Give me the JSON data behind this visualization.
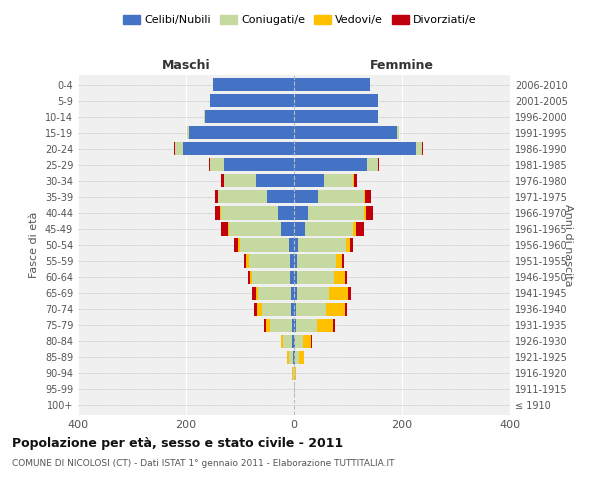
{
  "age_groups": [
    "100+",
    "95-99",
    "90-94",
    "85-89",
    "80-84",
    "75-79",
    "70-74",
    "65-69",
    "60-64",
    "55-59",
    "50-54",
    "45-49",
    "40-44",
    "35-39",
    "30-34",
    "25-29",
    "20-24",
    "15-19",
    "10-14",
    "5-9",
    "0-4"
  ],
  "birth_years": [
    "≤ 1910",
    "1911-1915",
    "1916-1920",
    "1921-1925",
    "1926-1930",
    "1931-1935",
    "1936-1940",
    "1941-1945",
    "1946-1950",
    "1951-1955",
    "1956-1960",
    "1961-1965",
    "1966-1970",
    "1971-1975",
    "1976-1980",
    "1981-1985",
    "1986-1990",
    "1991-1995",
    "1996-2000",
    "2001-2005",
    "2006-2010"
  ],
  "maschi": {
    "celibi": [
      0,
      0,
      0,
      2,
      3,
      4,
      5,
      6,
      7,
      8,
      10,
      25,
      30,
      50,
      70,
      130,
      205,
      195,
      165,
      155,
      150
    ],
    "coniugati": [
      0,
      0,
      2,
      8,
      18,
      40,
      55,
      60,
      70,
      75,
      90,
      95,
      105,
      90,
      60,
      25,
      15,
      4,
      2,
      1,
      0
    ],
    "vedovi": [
      0,
      0,
      1,
      3,
      4,
      8,
      8,
      5,
      5,
      5,
      3,
      2,
      2,
      1,
      0,
      1,
      1,
      0,
      0,
      0,
      0
    ],
    "divorziati": [
      0,
      0,
      0,
      0,
      0,
      3,
      6,
      6,
      4,
      4,
      8,
      14,
      10,
      6,
      5,
      2,
      1,
      0,
      0,
      0,
      0
    ]
  },
  "femmine": {
    "nubili": [
      0,
      0,
      0,
      2,
      2,
      3,
      4,
      5,
      6,
      6,
      8,
      20,
      25,
      45,
      55,
      135,
      225,
      190,
      155,
      155,
      140
    ],
    "coniugate": [
      0,
      1,
      2,
      8,
      15,
      40,
      55,
      60,
      68,
      72,
      88,
      90,
      105,
      85,
      55,
      20,
      12,
      4,
      1,
      0,
      0
    ],
    "vedove": [
      0,
      0,
      2,
      8,
      15,
      30,
      35,
      35,
      20,
      10,
      8,
      5,
      3,
      2,
      1,
      0,
      0,
      0,
      0,
      0,
      0
    ],
    "divorziate": [
      0,
      0,
      0,
      0,
      1,
      2,
      5,
      5,
      5,
      4,
      6,
      14,
      14,
      10,
      6,
      2,
      1,
      0,
      0,
      0,
      0
    ]
  },
  "colors": {
    "celibi": "#4472c4",
    "coniugati": "#c6d9a0",
    "vedovi": "#ffc000",
    "divorziati": "#c0000b"
  },
  "title": "Popolazione per età, sesso e stato civile - 2011",
  "subtitle": "COMUNE DI NICOLOSI (CT) - Dati ISTAT 1° gennaio 2011 - Elaborazione TUTTITALIA.IT",
  "xlabel_left": "Maschi",
  "xlabel_right": "Femmine",
  "ylabel_left": "Fasce di età",
  "ylabel_right": "Anni di nascita",
  "xlim": 400,
  "legend_labels": [
    "Celibi/Nubili",
    "Coniugati/e",
    "Vedovi/e",
    "Divorziati/e"
  ],
  "bg_color": "#ffffff",
  "plot_bg": "#f0f0f0"
}
